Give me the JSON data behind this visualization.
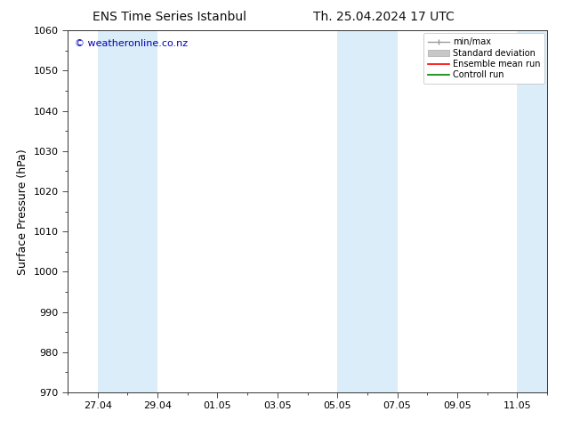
{
  "title_left": "ENS Time Series Istanbul",
  "title_right": "Th. 25.04.2024 17 UTC",
  "ylabel": "Surface Pressure (hPa)",
  "ylim": [
    970,
    1060
  ],
  "yticks": [
    970,
    980,
    990,
    1000,
    1010,
    1020,
    1030,
    1040,
    1050,
    1060
  ],
  "xtick_labels": [
    "27.04",
    "29.04",
    "01.05",
    "03.05",
    "05.05",
    "07.05",
    "09.05",
    "11.05"
  ],
  "xtick_positions": [
    1,
    3,
    5,
    7,
    9,
    11,
    13,
    15
  ],
  "xlim": [
    0,
    16
  ],
  "shade_color": "#daedf8",
  "band1": [
    1,
    3
  ],
  "band2": [
    9,
    11
  ],
  "band3": [
    15,
    16
  ],
  "watermark": "© weatheronline.co.nz",
  "watermark_color": "#0000bb",
  "background_color": "#ffffff",
  "legend_labels": [
    "min/max",
    "Standard deviation",
    "Ensemble mean run",
    "Controll run"
  ],
  "legend_colors": [
    "#999999",
    "#c8c8c8",
    "#ff0000",
    "#008000"
  ],
  "title_fontsize": 10,
  "ylabel_fontsize": 9,
  "tick_fontsize": 8,
  "watermark_fontsize": 8
}
